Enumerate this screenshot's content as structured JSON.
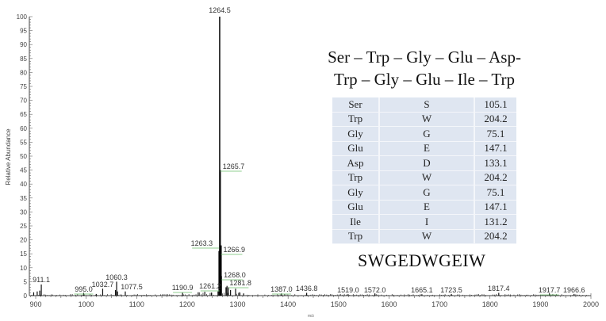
{
  "chart_data": {
    "type": "bar",
    "title": "",
    "xlabel": "m/z",
    "ylabel": "Relative Abundance",
    "xlim": [
      890,
      2000
    ],
    "ylim": [
      0,
      100
    ],
    "x_ticks": [
      900,
      1000,
      1100,
      1200,
      1300,
      1400,
      1500,
      1600,
      1700,
      1800,
      1900,
      2000
    ],
    "y_ticks": [
      0,
      5,
      10,
      15,
      20,
      25,
      30,
      35,
      40,
      45,
      50,
      55,
      60,
      65,
      70,
      75,
      80,
      85,
      90,
      95,
      100
    ],
    "grid": false,
    "peaks": [
      {
        "mz": 911.1,
        "intensity": 4,
        "label": "911.1"
      },
      {
        "mz": 995.0,
        "intensity": 1,
        "label": "995.0"
      },
      {
        "mz": 1032.7,
        "intensity": 2.5,
        "label": "1032.7"
      },
      {
        "mz": 1060.3,
        "intensity": 5,
        "label": "1060.3"
      },
      {
        "mz": 1077.5,
        "intensity": 1.5,
        "label": "1077.5"
      },
      {
        "mz": 1190.9,
        "intensity": 1,
        "label": "1190.9"
      },
      {
        "mz": 1261.2,
        "intensity": 1.5,
        "label": "1261.2"
      },
      {
        "mz": 1263.3,
        "intensity": 16,
        "label": "1263.3"
      },
      {
        "mz": 1264.5,
        "intensity": 100,
        "label": "1264.5"
      },
      {
        "mz": 1265.7,
        "intensity": 45,
        "label": "1265.7"
      },
      {
        "mz": 1266.9,
        "intensity": 17,
        "label": "1266.9"
      },
      {
        "mz": 1268.0,
        "intensity": 7,
        "label": "1268.0"
      },
      {
        "mz": 1281.8,
        "intensity": 3,
        "label": "1281.8"
      },
      {
        "mz": 1387.0,
        "intensity": 0.8,
        "label": "1387.0"
      },
      {
        "mz": 1436.8,
        "intensity": 1,
        "label": "1436.8"
      },
      {
        "mz": 1519.0,
        "intensity": 0.5,
        "label": "1519.0"
      },
      {
        "mz": 1572.0,
        "intensity": 0.8,
        "label": "1572.0"
      },
      {
        "mz": 1665.1,
        "intensity": 0.5,
        "label": "1665.1"
      },
      {
        "mz": 1723.5,
        "intensity": 0.6,
        "label": "1723.5"
      },
      {
        "mz": 1817.4,
        "intensity": 1,
        "label": "1817.4"
      },
      {
        "mz": 1917.7,
        "intensity": 0.8,
        "label": "1917.7"
      },
      {
        "mz": 1966.6,
        "intensity": 0.6,
        "label": "1966.6"
      }
    ],
    "minor_peaks": [
      {
        "mz": 896,
        "intensity": 1.2
      },
      {
        "mz": 903,
        "intensity": 1.5
      },
      {
        "mz": 908,
        "intensity": 1.8
      },
      {
        "mz": 1020,
        "intensity": 0.6
      },
      {
        "mz": 1058,
        "intensity": 2
      },
      {
        "mz": 1062,
        "intensity": 1.5
      },
      {
        "mz": 1222,
        "intensity": 1.2
      },
      {
        "mz": 1235,
        "intensity": 1.4
      },
      {
        "mz": 1248,
        "intensity": 1.1
      },
      {
        "mz": 1277,
        "intensity": 3
      },
      {
        "mz": 1279,
        "intensity": 3.5
      },
      {
        "mz": 1286,
        "intensity": 2
      },
      {
        "mz": 1296,
        "intensity": 2.5
      },
      {
        "mz": 1304,
        "intensity": 1.2
      },
      {
        "mz": 1312,
        "intensity": 0.8
      }
    ]
  },
  "annotation": {
    "sequence_line1": "Ser – Trp – Gly – Glu – Asp-",
    "sequence_line2": "Trp – Gly – Glu – Ile – Trp",
    "one_letter_code": "SWGEDWGEIW"
  },
  "residue_table": {
    "rows": [
      {
        "name": "Ser",
        "code": "S",
        "mass": "105.1"
      },
      {
        "name": "Trp",
        "code": "W",
        "mass": "204.2"
      },
      {
        "name": "Gly",
        "code": "G",
        "mass": "75.1"
      },
      {
        "name": "Glu",
        "code": "E",
        "mass": "147.1"
      },
      {
        "name": "Asp",
        "code": "D",
        "mass": "133.1"
      },
      {
        "name": "Trp",
        "code": "W",
        "mass": "204.2"
      },
      {
        "name": "Gly",
        "code": "G",
        "mass": "75.1"
      },
      {
        "name": "Glu",
        "code": "E",
        "mass": "147.1"
      },
      {
        "name": "Ile",
        "code": "I",
        "mass": "131.2"
      },
      {
        "name": "Trp",
        "code": "W",
        "mass": "204.2"
      }
    ]
  },
  "colors": {
    "axis": "#333333",
    "peak": "#111111",
    "label_line": "#5cb85c",
    "table_bg": "#dfe6f1"
  }
}
